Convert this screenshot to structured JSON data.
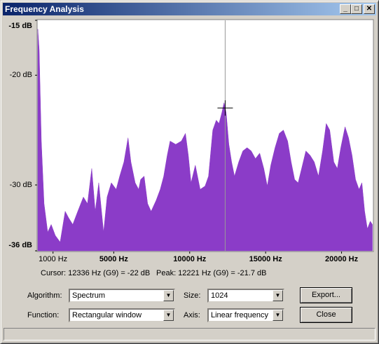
{
  "window": {
    "title": "Frequency Analysis"
  },
  "chart_data": {
    "type": "area",
    "color": "#8b3cc8",
    "x": [
      0,
      90,
      230,
      410,
      650,
      880,
      1150,
      1470,
      1800,
      2030,
      2300,
      2630,
      3000,
      3270,
      3550,
      3780,
      4010,
      4330,
      4560,
      4840,
      5160,
      5390,
      5670,
      5940,
      6130,
      6410,
      6640,
      6770,
      7000,
      7230,
      7460,
      7790,
      8060,
      8290,
      8520,
      8710,
      9080,
      9450,
      9720,
      9910,
      10090,
      10370,
      10690,
      11010,
      11240,
      11520,
      11750,
      11930,
      12120,
      12260,
      12400,
      12580,
      12760,
      12950,
      13230,
      13500,
      13780,
      14050,
      14330,
      14610,
      14880,
      15110,
      15340,
      15620,
      15900,
      16170,
      16450,
      16680,
      16910,
      17140,
      17370,
      17650,
      17930,
      18200,
      18480,
      18750,
      18990,
      19220,
      19490,
      19720,
      19950,
      20230,
      20460,
      20690,
      20920,
      21150,
      21340,
      21520,
      21700,
      21890,
      22030
    ],
    "values": [
      -15.8,
      -17.7,
      -26.0,
      -31.7,
      -34.3,
      -33.6,
      -34.6,
      -35.2,
      -32.4,
      -33.0,
      -33.6,
      -32.4,
      -31.1,
      -31.7,
      -28.5,
      -32.4,
      -29.8,
      -34.3,
      -31.1,
      -29.8,
      -30.4,
      -29.2,
      -27.9,
      -25.7,
      -27.9,
      -29.8,
      -30.4,
      -29.5,
      -29.2,
      -31.7,
      -32.4,
      -31.4,
      -30.4,
      -29.2,
      -27.3,
      -26.0,
      -26.3,
      -26.0,
      -25.3,
      -27.3,
      -29.8,
      -28.2,
      -30.4,
      -30.1,
      -29.2,
      -25.0,
      -24.1,
      -24.4,
      -23.4,
      -22.5,
      -23.4,
      -26.3,
      -27.9,
      -29.2,
      -27.9,
      -26.9,
      -26.6,
      -26.9,
      -27.6,
      -27.1,
      -28.5,
      -30.1,
      -28.2,
      -26.6,
      -25.3,
      -25.0,
      -26.0,
      -27.9,
      -29.5,
      -29.8,
      -28.5,
      -26.9,
      -27.3,
      -27.9,
      -29.2,
      -26.9,
      -24.4,
      -25.0,
      -27.9,
      -28.5,
      -26.6,
      -24.7,
      -25.7,
      -27.3,
      -29.5,
      -30.4,
      -29.8,
      -32.4,
      -34.0,
      -33.3,
      -33.6
    ],
    "xlim": [
      0,
      22050
    ],
    "ylim": [
      -36,
      -15
    ],
    "xticks": [
      {
        "value": 1000,
        "label": "1000 Hz"
      },
      {
        "value": 5000,
        "label": "5000 Hz"
      },
      {
        "value": 10000,
        "label": "10000 Hz"
      },
      {
        "value": 15000,
        "label": "15000 Hz"
      },
      {
        "value": 20000,
        "label": "20000 Hz"
      }
    ],
    "yticks": [
      {
        "value": -15,
        "label": "-15 dB"
      },
      {
        "value": -20,
        "label": "-20 dB"
      },
      {
        "value": -30,
        "label": "-30 dB"
      },
      {
        "value": -36,
        "label": "-36 dB"
      }
    ],
    "cursor_hz": 12336
  },
  "readout": {
    "cursor": "Cursor: 12336 Hz (G9) = -22 dB",
    "peak": "Peak: 12221 Hz (G9) = -21.7 dB"
  },
  "controls": {
    "algorithm": {
      "label": "Algorithm:",
      "value": "Spectrum"
    },
    "size": {
      "label": "Size:",
      "value": "1024"
    },
    "function": {
      "label": "Function:",
      "value": "Rectangular window"
    },
    "axis": {
      "label": "Axis:",
      "value": "Linear frequency"
    },
    "export": "Export...",
    "close": "Close"
  }
}
